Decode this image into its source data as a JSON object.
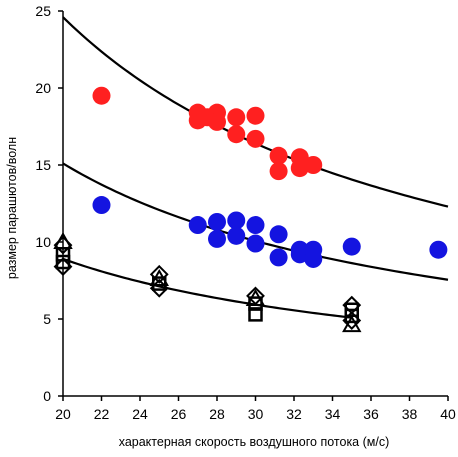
{
  "chart_data": {
    "type": "scatter",
    "title": "",
    "xlabel": "характерная скорость воздушного потока (м/с)",
    "ylabel": "размер парашютов/волн",
    "xlim": [
      20,
      40
    ],
    "ylim": [
      0,
      25
    ],
    "xticks": [
      20,
      22,
      24,
      26,
      28,
      30,
      32,
      34,
      36,
      38,
      40
    ],
    "yticks": [
      0,
      5,
      10,
      15,
      20,
      25
    ],
    "grid": false,
    "legend": "none",
    "series": [
      {
        "marker": "circle",
        "color": "#ff2020",
        "points": [
          [
            22,
            19.5
          ],
          [
            27,
            18.4
          ],
          [
            27,
            17.9
          ],
          [
            27.5,
            18.1
          ],
          [
            28,
            18.4
          ],
          [
            28,
            17.8
          ],
          [
            29,
            18.1
          ],
          [
            29,
            17.0
          ],
          [
            30,
            18.2
          ],
          [
            30,
            16.7
          ],
          [
            31.2,
            15.6
          ],
          [
            31.2,
            14.6
          ],
          [
            32.3,
            15.5
          ],
          [
            32.3,
            14.8
          ],
          [
            33,
            15.0
          ]
        ]
      },
      {
        "marker": "circle",
        "color": "#1414e0",
        "points": [
          [
            22,
            12.4
          ],
          [
            27,
            11.1
          ],
          [
            28,
            11.3
          ],
          [
            28,
            10.2
          ],
          [
            29,
            11.4
          ],
          [
            29,
            10.4
          ],
          [
            30,
            11.1
          ],
          [
            30,
            9.9
          ],
          [
            31.2,
            10.5
          ],
          [
            31.2,
            9.0
          ],
          [
            32.3,
            9.5
          ],
          [
            32.3,
            9.2
          ],
          [
            33,
            9.5
          ],
          [
            33,
            8.9
          ],
          [
            35,
            9.7
          ],
          [
            39.5,
            9.5
          ]
        ]
      },
      {
        "marker": "open-square",
        "color": "#000000",
        "points": [
          [
            20,
            9.2
          ],
          [
            20,
            8.7
          ],
          [
            25,
            7.3
          ],
          [
            30,
            6.0
          ],
          [
            30,
            5.3
          ],
          [
            35,
            5.6
          ],
          [
            35,
            5.2
          ]
        ]
      },
      {
        "marker": "open-diamond",
        "color": "#000000",
        "points": [
          [
            20,
            9.8
          ],
          [
            20,
            8.4
          ],
          [
            25,
            7.9
          ],
          [
            25,
            7.0
          ],
          [
            30,
            6.5
          ],
          [
            35,
            5.9
          ],
          [
            35,
            4.9
          ]
        ]
      },
      {
        "marker": "open-triangle",
        "color": "#000000",
        "points": [
          [
            20,
            10.0
          ],
          [
            25,
            7.6
          ],
          [
            30,
            6.3
          ],
          [
            35,
            4.6
          ]
        ]
      }
    ],
    "fits": [
      {
        "color": "#000000",
        "x": [
          20,
          40
        ],
        "coef": 492,
        "exponent": -1
      },
      {
        "color": "#000000",
        "x": [
          20,
          40
        ],
        "coef": 302,
        "exponent": -1
      },
      {
        "color": "#000000",
        "x": [
          20,
          35
        ],
        "coef": 178,
        "exponent": -1
      }
    ]
  }
}
